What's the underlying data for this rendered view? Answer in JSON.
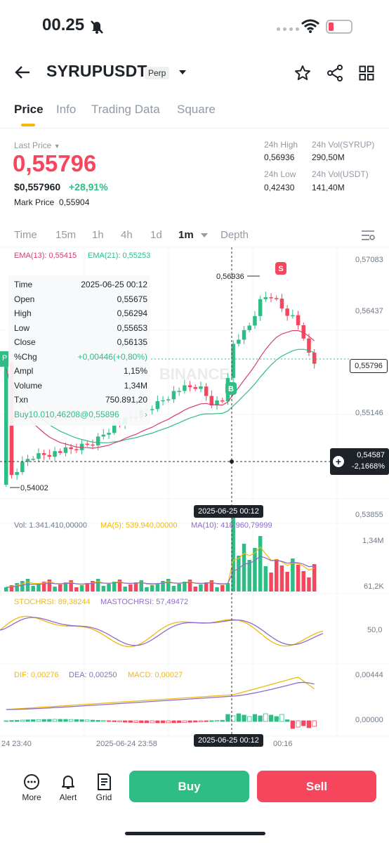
{
  "status": {
    "time": "00.25"
  },
  "header": {
    "symbol": "SYRUPUSDT",
    "badge": "Perp"
  },
  "tabs": [
    "Price",
    "Info",
    "Trading Data",
    "Square"
  ],
  "price": {
    "label": "Last Price",
    "last": "0,55796",
    "usd": "$0,557960",
    "change": "+28,91%",
    "mark_label": "Mark Price",
    "mark": "0,55904"
  },
  "stats": {
    "high_label": "24h High",
    "high": "0,56936",
    "low_label": "24h Low",
    "low": "0,42430",
    "vol_base_label": "24h Vol(SYRUP)",
    "vol_base": "290,50M",
    "vol_quote_label": "24h Vol(USDT)",
    "vol_quote": "141,40M"
  },
  "timeframes": [
    "Time",
    "15m",
    "1h",
    "4h",
    "1d",
    "1m",
    "Depth"
  ],
  "ema": {
    "ema13": "EMA(13): 0,55415",
    "ema21": "EMA(21): 0,55253"
  },
  "tooltip": {
    "rows": [
      [
        "Time",
        "2025-06-25 00:12"
      ],
      [
        "Open",
        "0,55675"
      ],
      [
        "High",
        "0,56294"
      ],
      [
        "Low",
        "0,55653"
      ],
      [
        "Close",
        "0,56135"
      ],
      [
        "%Chg",
        "+0,00446(+0,80%)"
      ],
      [
        "Ampl",
        "1,15%"
      ],
      [
        "Volume",
        "1,34M"
      ],
      [
        "Txn",
        "750.891,20"
      ]
    ],
    "buy": "Buy10.010,46208@0,55896"
  },
  "axis": {
    "p1": "0,57083",
    "p2": "0,56437",
    "p3": "0,55796",
    "p4": "0,55146",
    "p5": "0,53855",
    "cross_price": "0,54587",
    "cross_pct": "-2,1668%",
    "high_mark": "0,56936",
    "low_mark": "0,54002",
    "time_marker": "2025-06-25 00:12",
    "x1": "24 23:40",
    "x2": "2025-06-24 23:58",
    "x3": "00:16"
  },
  "volume": {
    "label": "Vol: 1.341.410,00000",
    "ma5": "MA(5): 539.940,00000",
    "ma10": "MA(10): 418.960,79999",
    "max": "1,34M",
    "min": "61,2K"
  },
  "stoch": {
    "k": "STOCHRSI: 89,38244",
    "d": "MASTOCHRSI: 57,49472",
    "mid": "50,0"
  },
  "macd": {
    "dif": "DIF: 0,00276",
    "dea": "DEA: 0,00250",
    "macd": "MACD: 0,00027",
    "top": "0,00444",
    "zero": "0,00000"
  },
  "bottom": {
    "more": "More",
    "alert": "Alert",
    "grid": "Grid",
    "buy": "Buy",
    "sell": "Sell"
  },
  "signals": {
    "b": "B",
    "s": "S"
  },
  "watermark": "BINANCE",
  "colors": {
    "up": "#2ebd85",
    "down": "#f6465d",
    "accent": "#f0b90b"
  }
}
